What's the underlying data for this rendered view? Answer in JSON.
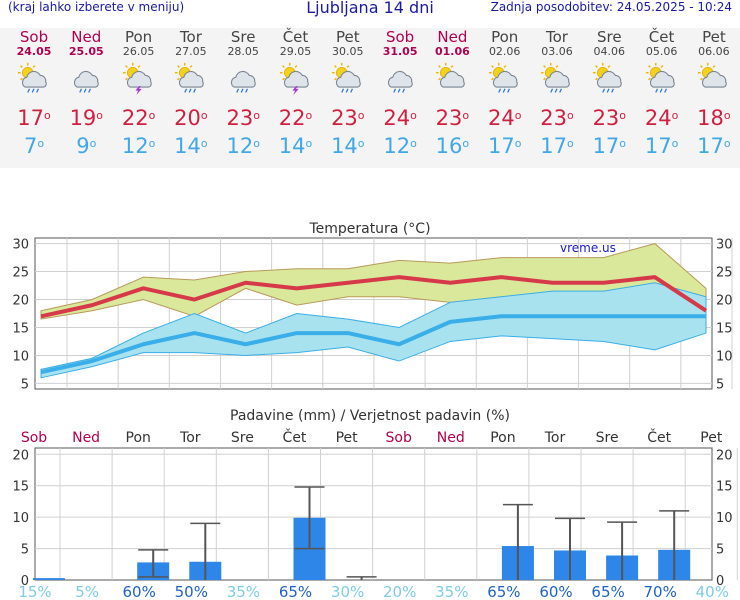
{
  "header": {
    "left": "(kraj lahko izberete v meniju)",
    "title": "Ljubljana 14 dni",
    "updated": "Zadnja posodobitev: 24.05.2025 - 10:24"
  },
  "days": [
    {
      "name": "Sob",
      "date": "24.05",
      "weekend": true,
      "icon": "sun-cloud-rain-icon",
      "max": "17",
      "min": "7"
    },
    {
      "name": "Ned",
      "date": "25.05",
      "weekend": true,
      "icon": "cloud-rain-icon",
      "max": "19",
      "min": "9"
    },
    {
      "name": "Pon",
      "date": "26.05",
      "weekend": false,
      "icon": "sun-cloud-thunder-icon",
      "max": "22",
      "min": "12"
    },
    {
      "name": "Tor",
      "date": "27.05",
      "weekend": false,
      "icon": "sun-cloud-rain-icon",
      "max": "20",
      "min": "14"
    },
    {
      "name": "Sre",
      "date": "28.05",
      "weekend": false,
      "icon": "cloud-rain-icon",
      "max": "23",
      "min": "12"
    },
    {
      "name": "Čet",
      "date": "29.05",
      "weekend": false,
      "icon": "sun-cloud-thunder-icon",
      "max": "22",
      "min": "14"
    },
    {
      "name": "Pet",
      "date": "30.05",
      "weekend": false,
      "icon": "sun-cloud-rain-icon",
      "max": "23",
      "min": "14"
    },
    {
      "name": "Sob",
      "date": "31.05",
      "weekend": true,
      "icon": "cloud-rain-icon",
      "max": "24",
      "min": "12"
    },
    {
      "name": "Ned",
      "date": "01.06",
      "weekend": true,
      "icon": "sun-cloud-icon",
      "max": "23",
      "min": "16"
    },
    {
      "name": "Pon",
      "date": "02.06",
      "weekend": false,
      "icon": "sun-cloud-rain-icon",
      "max": "24",
      "min": "17"
    },
    {
      "name": "Tor",
      "date": "03.06",
      "weekend": false,
      "icon": "sun-cloud-rain-icon",
      "max": "23",
      "min": "17"
    },
    {
      "name": "Sre",
      "date": "04.06",
      "weekend": false,
      "icon": "sun-cloud-rain-icon",
      "max": "23",
      "min": "17"
    },
    {
      "name": "Čet",
      "date": "05.06",
      "weekend": false,
      "icon": "sun-cloud-rain-icon",
      "max": "24",
      "min": "17"
    },
    {
      "name": "Pet",
      "date": "06.06",
      "weekend": false,
      "icon": "sun-cloud-icon",
      "max": "18",
      "min": "17"
    }
  ],
  "chart_data": [
    {
      "type": "line",
      "title": "Temperatura (°C)",
      "watermark": "vreme.us",
      "x": [
        "24.05",
        "25.05",
        "26.05",
        "27.05",
        "28.05",
        "29.05",
        "30.05",
        "31.05",
        "01.06",
        "02.06",
        "03.06",
        "04.06",
        "05.06",
        "06.06"
      ],
      "ylim": [
        4,
        31
      ],
      "yticks": [
        5,
        10,
        15,
        20,
        25,
        30
      ],
      "grid": true,
      "series": [
        {
          "name": "max",
          "color": "#d63a4a",
          "values": [
            17,
            19,
            22,
            20,
            23,
            22,
            23,
            24,
            23,
            24,
            23,
            23,
            24,
            18
          ]
        },
        {
          "name": "max_high",
          "color": "#d9e89a",
          "values": [
            18,
            20,
            24,
            23.5,
            25,
            25.5,
            25.5,
            27,
            26.5,
            27.5,
            27.5,
            27.5,
            30,
            22
          ]
        },
        {
          "name": "max_low",
          "color": "#d9e89a",
          "values": [
            16.5,
            18,
            20,
            17,
            22,
            19,
            20.5,
            20.5,
            19.5,
            20.5,
            20,
            19,
            17,
            16
          ]
        },
        {
          "name": "min",
          "color": "#3aaee8",
          "values": [
            7,
            9,
            12,
            14,
            12,
            14,
            14,
            12,
            16,
            17,
            17,
            17,
            17,
            17
          ]
        },
        {
          "name": "min_high",
          "color": "#a8e2ee",
          "values": [
            7.5,
            9.5,
            14,
            17.5,
            14,
            17.5,
            16.5,
            15,
            19.5,
            20.5,
            21.5,
            21.5,
            23,
            20.5
          ]
        },
        {
          "name": "min_low",
          "color": "#a8e2ee",
          "values": [
            6,
            8,
            10.5,
            10.5,
            10,
            10.5,
            11.5,
            9,
            12.5,
            13.5,
            13,
            12.5,
            11,
            14
          ]
        }
      ]
    },
    {
      "type": "bar",
      "title": "Padavine (mm) / Verjetnost padavin (%)",
      "categories": [
        "Sob",
        "Ned",
        "Pon",
        "Tor",
        "Sre",
        "Čet",
        "Pet",
        "Sob",
        "Ned",
        "Pon",
        "Tor",
        "Sre",
        "Čet",
        "Pet"
      ],
      "weekend": [
        true,
        true,
        false,
        false,
        false,
        false,
        false,
        true,
        true,
        false,
        false,
        false,
        false,
        false
      ],
      "ylim": [
        0,
        21
      ],
      "yticks": [
        0,
        5,
        10,
        15,
        20
      ],
      "values": [
        0.3,
        0,
        2.8,
        2.9,
        0,
        9.9,
        0,
        0,
        0,
        5.4,
        4.7,
        3.9,
        4.8,
        0
      ],
      "err_low": [
        0,
        0,
        0.5,
        0,
        0,
        5,
        0,
        0,
        0,
        0,
        0,
        0,
        0,
        0
      ],
      "err_high": [
        0,
        0,
        4.8,
        9,
        0,
        14.8,
        0.5,
        0,
        0,
        12,
        9.8,
        9.2,
        11,
        0
      ],
      "probability": [
        "15%",
        "5%",
        "60%",
        "50%",
        "35%",
        "65%",
        "30%",
        "20%",
        "35%",
        "65%",
        "60%",
        "65%",
        "70%",
        "40%"
      ],
      "bar_color": "#2d86e8"
    }
  ]
}
